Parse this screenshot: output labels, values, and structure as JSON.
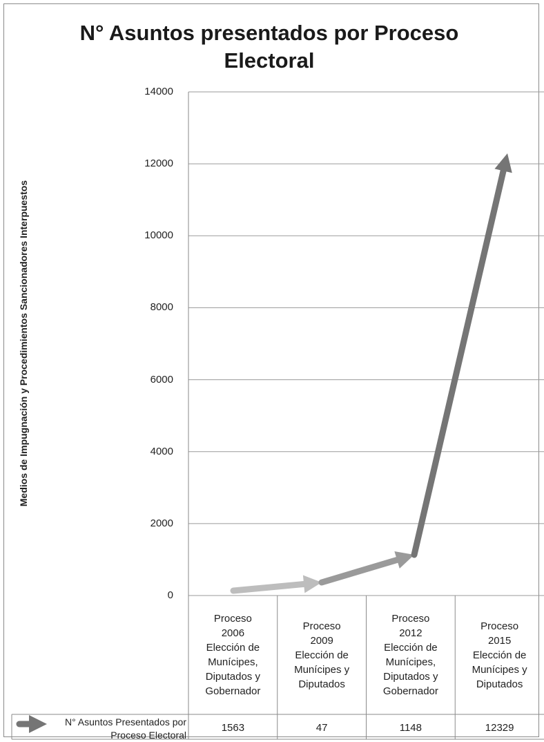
{
  "chart_data": {
    "type": "line",
    "title": "N° Asuntos presentados por Proceso Electoral",
    "ylabel": "Medios de Impugnación y Procedimientos Sancionadores Interpuestos",
    "xlabel": "",
    "ylim": [
      0,
      14000
    ],
    "yticks": [
      "0",
      "2000",
      "4000",
      "6000",
      "8000",
      "10000",
      "12000",
      "14000"
    ],
    "grid": true,
    "categories": [
      "Proceso 2006 Elección de Munícipes, Diputados y Gobernador",
      "Proceso 2009 Elección de Munícipes y Diputados",
      "Proceso 2012 Elección de Munícipes, Diputados y Gobernador",
      "Proceso 2015 Elección de Munícipes y Diputados"
    ],
    "series": [
      {
        "name": "N° Asuntos Presentados por Proceso Electoral",
        "values": [
          1563,
          47,
          1148,
          12329
        ],
        "value_labels": [
          "1563",
          "47",
          "1148",
          "12329"
        ]
      }
    ],
    "legend": "bottom-data-table",
    "colors": {
      "segment1": "#bdbdbd",
      "segment2": "#9a9a9a",
      "segment3": "#757575",
      "grid": "#9a9a9a"
    }
  }
}
